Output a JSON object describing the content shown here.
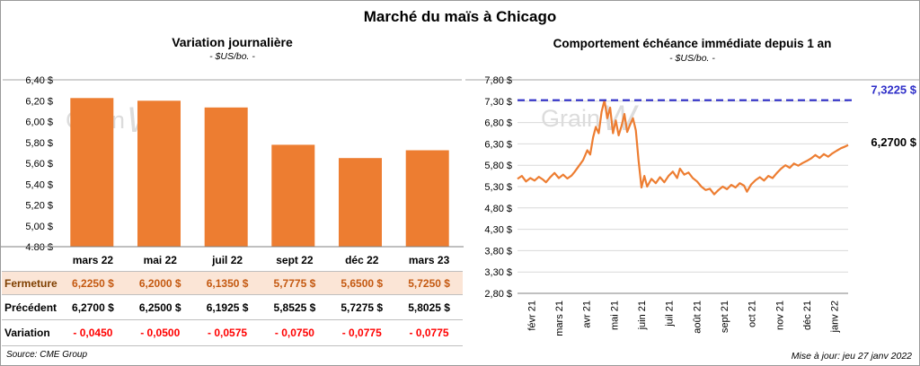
{
  "page": {
    "title": "Marché du maïs à Chicago",
    "source_note": "Source: CME Group",
    "update_note": "Mise à jour: jeu 27 janv 2022",
    "watermark": {
      "text": "Grain",
      "mark": "W"
    }
  },
  "colors": {
    "orange": "#ED7D31",
    "reference_blue": "#2E2EC8",
    "variation_red": "#FF0000",
    "fermeture_bg": "#FBE5D6",
    "grid": "#D9D9D9",
    "axis": "#A6A6A6",
    "axis_dark": "#808080",
    "watermark": "#DCDCDC"
  },
  "chart_data": [
    {
      "type": "bar",
      "title": "Variation journalière",
      "subtitle": "- $US/bo. -",
      "categories": [
        "mars 22",
        "mai 22",
        "juil 22",
        "sept 22",
        "déc 22",
        "mars 23"
      ],
      "values": [
        6.225,
        6.2,
        6.135,
        5.7775,
        5.65,
        5.725
      ],
      "ylim": [
        4.8,
        6.4
      ],
      "ytick_step": 0.2,
      "ytick_labels": [
        "6,40 $",
        "6,20 $",
        "6,00 $",
        "5,80 $",
        "5,60 $",
        "5,40 $",
        "5,20 $",
        "5,00 $",
        "4,80 $"
      ],
      "legend": "none",
      "grid": false,
      "table": {
        "rows": [
          {
            "key": "fermeture",
            "label": "Fermeture",
            "values": [
              "6,2250 $",
              "6,2000 $",
              "6,1350 $",
              "5,7775 $",
              "5,6500 $",
              "5,7250 $"
            ]
          },
          {
            "key": "precedent",
            "label": "Précédent",
            "values": [
              "6,2700 $",
              "6,2500 $",
              "6,1925 $",
              "5,8525 $",
              "5,7275 $",
              "5,8025 $"
            ]
          },
          {
            "key": "variation",
            "label": "Variation",
            "values": [
              "- 0,0450",
              "- 0,0500",
              "- 0,0575",
              "- 0,0750",
              "- 0,0775",
              "- 0,0775"
            ]
          }
        ]
      }
    },
    {
      "type": "line",
      "title": "Comportement échéance immédiate depuis 1 an",
      "subtitle": "- $US/bo. -",
      "categories": [
        "févr 21",
        "mars 21",
        "avr 21",
        "mai 21",
        "juin 21",
        "juil 21",
        "août 21",
        "sept 21",
        "oct 21",
        "nov 21",
        "déc 21",
        "janv 22"
      ],
      "ylim": [
        2.8,
        7.8
      ],
      "ytick_step": 0.5,
      "ytick_labels": [
        "7,80 $",
        "7,30 $",
        "6,80 $",
        "6,30 $",
        "5,80 $",
        "5,30 $",
        "4,80 $",
        "4,30 $",
        "3,80 $",
        "3,30 $",
        "2,80 $"
      ],
      "grid": true,
      "x_max": 11.6,
      "reference": {
        "value": 7.3225,
        "label": "7,3225 $"
      },
      "last": {
        "value": 6.27,
        "label": "6,2700 $"
      },
      "points": [
        [
          0,
          5.48
        ],
        [
          0.15,
          5.55
        ],
        [
          0.3,
          5.42
        ],
        [
          0.45,
          5.5
        ],
        [
          0.6,
          5.44
        ],
        [
          0.75,
          5.53
        ],
        [
          0.9,
          5.46
        ],
        [
          1,
          5.4
        ],
        [
          1.15,
          5.52
        ],
        [
          1.3,
          5.62
        ],
        [
          1.45,
          5.5
        ],
        [
          1.6,
          5.58
        ],
        [
          1.75,
          5.49
        ],
        [
          1.9,
          5.56
        ],
        [
          2,
          5.64
        ],
        [
          2.15,
          5.78
        ],
        [
          2.3,
          5.92
        ],
        [
          2.45,
          6.15
        ],
        [
          2.55,
          6.05
        ],
        [
          2.65,
          6.45
        ],
        [
          2.75,
          6.7
        ],
        [
          2.85,
          6.55
        ],
        [
          2.95,
          7.05
        ],
        [
          3.05,
          7.32
        ],
        [
          3.15,
          6.9
        ],
        [
          3.25,
          7.15
        ],
        [
          3.35,
          6.55
        ],
        [
          3.45,
          6.85
        ],
        [
          3.55,
          6.5
        ],
        [
          3.65,
          6.72
        ],
        [
          3.75,
          7
        ],
        [
          3.85,
          6.58
        ],
        [
          3.95,
          6.75
        ],
        [
          4.05,
          6.9
        ],
        [
          4.15,
          6.62
        ],
        [
          4.25,
          5.9
        ],
        [
          4.35,
          5.28
        ],
        [
          4.45,
          5.55
        ],
        [
          4.55,
          5.3
        ],
        [
          4.7,
          5.48
        ],
        [
          4.85,
          5.38
        ],
        [
          5,
          5.52
        ],
        [
          5.15,
          5.4
        ],
        [
          5.3,
          5.55
        ],
        [
          5.45,
          5.65
        ],
        [
          5.6,
          5.5
        ],
        [
          5.7,
          5.72
        ],
        [
          5.85,
          5.58
        ],
        [
          6,
          5.63
        ],
        [
          6.15,
          5.5
        ],
        [
          6.3,
          5.42
        ],
        [
          6.45,
          5.3
        ],
        [
          6.6,
          5.22
        ],
        [
          6.75,
          5.25
        ],
        [
          6.9,
          5.12
        ],
        [
          7.05,
          5.22
        ],
        [
          7.2,
          5.3
        ],
        [
          7.35,
          5.24
        ],
        [
          7.5,
          5.34
        ],
        [
          7.65,
          5.28
        ],
        [
          7.8,
          5.38
        ],
        [
          7.95,
          5.32
        ],
        [
          8.05,
          5.18
        ],
        [
          8.2,
          5.35
        ],
        [
          8.35,
          5.45
        ],
        [
          8.5,
          5.52
        ],
        [
          8.65,
          5.44
        ],
        [
          8.8,
          5.55
        ],
        [
          8.95,
          5.5
        ],
        [
          9.1,
          5.62
        ],
        [
          9.25,
          5.72
        ],
        [
          9.4,
          5.8
        ],
        [
          9.55,
          5.74
        ],
        [
          9.7,
          5.84
        ],
        [
          9.85,
          5.79
        ],
        [
          10,
          5.85
        ],
        [
          10.15,
          5.9
        ],
        [
          10.3,
          5.96
        ],
        [
          10.45,
          6.04
        ],
        [
          10.6,
          5.97
        ],
        [
          10.75,
          6.06
        ],
        [
          10.9,
          6
        ],
        [
          11.05,
          6.08
        ],
        [
          11.2,
          6.14
        ],
        [
          11.35,
          6.2
        ],
        [
          11.5,
          6.24
        ],
        [
          11.6,
          6.27
        ]
      ]
    }
  ]
}
